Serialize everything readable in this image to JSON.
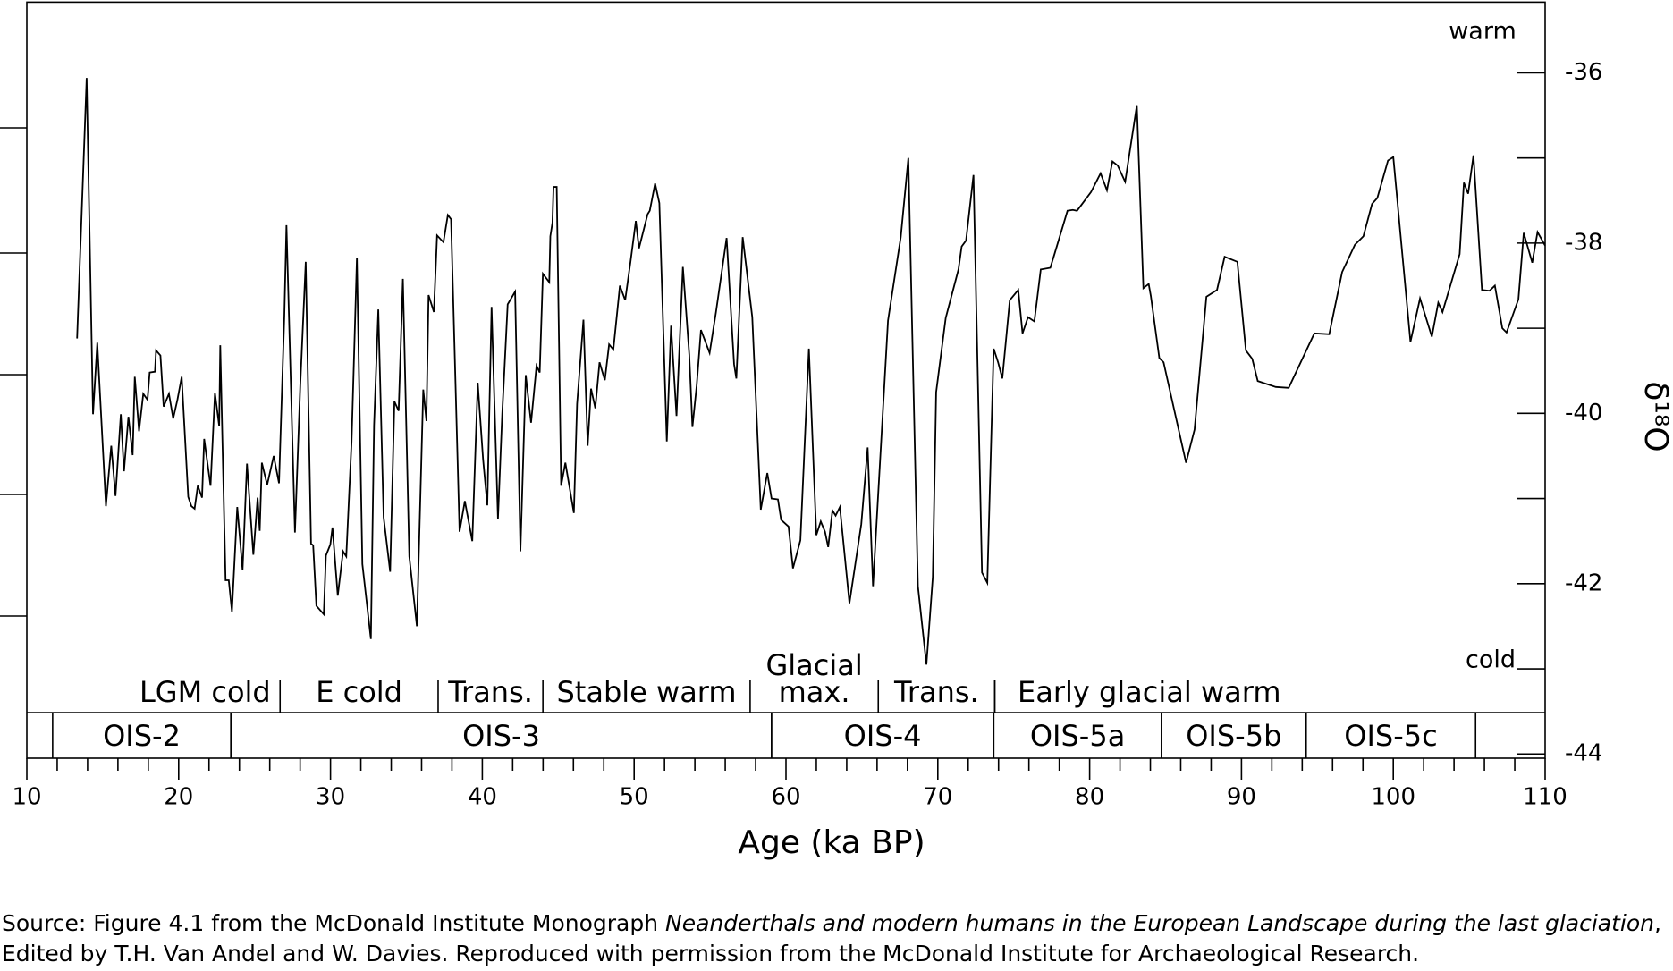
{
  "chart_data": {
    "type": "line",
    "x_label": "Age (ka BP)",
    "y_label": "δ¹⁸O",
    "annotations": {
      "warm": "warm",
      "cold": "cold"
    },
    "color": "#000000",
    "xlim": [
      10,
      110
    ],
    "xticks": [
      10,
      20,
      30,
      40,
      50,
      60,
      70,
      80,
      90,
      100,
      110
    ],
    "xminor": [
      12,
      14,
      16,
      18,
      22,
      24,
      26,
      28,
      32,
      34,
      36,
      38,
      42,
      44,
      46,
      48,
      52,
      54,
      56,
      58,
      62,
      64,
      66,
      68,
      72,
      74,
      76,
      78,
      82,
      84,
      86,
      88,
      92,
      94,
      96,
      98,
      102,
      104,
      106,
      108
    ],
    "ylim": [
      -44.05,
      -35.17
    ],
    "yticks": [
      -36,
      -38,
      -40,
      -42,
      -44
    ],
    "yminor": [
      -37,
      -39,
      -41,
      -43
    ],
    "phases": [
      {
        "label": "LGM cold",
        "start": 16.8,
        "end": 26.68
      },
      {
        "label": "E cold",
        "start": 26.68,
        "end": 37.09
      },
      {
        "label": "Trans.",
        "start": 37.09,
        "end": 43.99
      },
      {
        "label": "Stable warm",
        "start": 43.99,
        "end": 57.64
      },
      {
        "label": [
          "Glacial",
          "max."
        ],
        "start": 57.64,
        "end": 66.08
      },
      {
        "label": "Trans.",
        "start": 66.08,
        "end": 73.75
      },
      {
        "label": "Early glacial warm",
        "start": 73.75,
        "end": 94.1
      }
    ],
    "stages": [
      {
        "label": "OIS-2",
        "start": 11.7,
        "end": 23.44
      },
      {
        "label": "OIS-3",
        "start": 23.44,
        "end": 59.05
      },
      {
        "label": "OIS-4",
        "start": 59.05,
        "end": 73.68
      },
      {
        "label": "OIS-5a",
        "start": 73.68,
        "end": 84.73
      },
      {
        "label": "OIS-5b",
        "start": 84.73,
        "end": 94.26
      },
      {
        "label": "OIS-5c",
        "start": 94.26,
        "end": 105.42
      }
    ],
    "x": [
      13.31,
      13.94,
      14.36,
      14.64,
      15.21,
      15.56,
      15.84,
      16.19,
      16.4,
      16.69,
      16.97,
      17.11,
      17.39,
      17.67,
      17.95,
      18.09,
      18.44,
      18.51,
      18.8,
      19.01,
      19.36,
      19.64,
      19.92,
      20.2,
      20.63,
      20.84,
      21.05,
      21.26,
      21.54,
      21.68,
      22.1,
      22.39,
      22.67,
      22.74,
      23.09,
      23.3,
      23.51,
      23.86,
      24.21,
      24.5,
      24.92,
      25.2,
      25.34,
      25.48,
      25.83,
      26.26,
      26.61,
      26.96,
      27.1,
      27.66,
      28.01,
      28.37,
      28.72,
      28.86,
      29.07,
      29.56,
      29.7,
      29.99,
      30.13,
      30.48,
      30.83,
      31.04,
      31.39,
      31.74,
      32.1,
      32.66,
      32.87,
      33.15,
      33.5,
      33.93,
      34.21,
      34.49,
      34.77,
      35.19,
      35.69,
      36.11,
      36.32,
      36.46,
      36.81,
      37.02,
      37.44,
      37.73,
      37.94,
      38.5,
      38.85,
      39.34,
      39.7,
      40.05,
      40.33,
      40.61,
      41.03,
      41.31,
      41.67,
      42.16,
      42.51,
      42.86,
      43.21,
      43.57,
      43.78,
      43.99,
      44.41,
      44.48,
      44.62,
      44.69,
      44.9,
      45.19,
      45.47,
      46.03,
      46.24,
      46.66,
      46.94,
      47.16,
      47.44,
      47.72,
      48.07,
      48.35,
      48.63,
      49.06,
      49.41,
      49.76,
      50.11,
      50.32,
      50.89,
      51.03,
      51.38,
      51.66,
      52.15,
      52.43,
      52.79,
      53.21,
      53.63,
      53.84,
      54.12,
      54.4,
      54.97,
      55.39,
      56.09,
      56.58,
      56.73,
      57.15,
      57.78,
      58.34,
      58.77,
      59.05,
      59.47,
      59.68,
      60.17,
      60.46,
      60.95,
      61.51,
      62.0,
      62.29,
      62.57,
      62.78,
      63.06,
      63.27,
      63.55,
      64.18,
      64.96,
      65.38,
      65.73,
      66.72,
      67.56,
      68.06,
      68.69,
      69.25,
      69.67,
      69.89,
      70.52,
      71.36,
      71.57,
      71.86,
      72.35,
      72.91,
      73.26,
      73.68,
      73.97,
      74.25,
      74.74,
      75.3,
      75.58,
      75.94,
      76.36,
      76.78,
      77.41,
      77.7,
      78.54,
      78.89,
      79.17,
      80.09,
      80.72,
      81.14,
      81.5,
      81.85,
      82.34,
      83.11,
      83.54,
      83.89,
      84.03,
      84.59,
      84.87,
      86.35,
      86.91,
      87.69,
      88.39,
      88.89,
      89.73,
      90.29,
      90.71,
      91.07,
      92.26,
      93.11,
      94.8,
      95.78,
      96.63,
      97.47,
      98.03,
      98.6,
      98.95,
      99.65,
      100.0,
      101.13,
      101.76,
      102.54,
      102.96,
      103.24,
      104.37,
      104.65,
      104.93,
      105.28,
      105.84,
      106.34,
      106.69,
      107.18,
      107.46,
      108.24,
      108.59,
      109.15,
      109.5,
      110.0
    ],
    "values": [
      -39.12,
      -36.06,
      -40.01,
      -39.17,
      -41.09,
      -40.38,
      -40.97,
      -40.01,
      -40.68,
      -40.04,
      -40.49,
      -39.57,
      -40.21,
      -39.77,
      -39.84,
      -39.52,
      -39.51,
      -39.26,
      -39.32,
      -39.92,
      -39.77,
      -40.06,
      -39.84,
      -39.57,
      -40.98,
      -41.09,
      -41.12,
      -40.85,
      -40.99,
      -40.3,
      -40.85,
      -39.76,
      -40.15,
      -39.2,
      -41.96,
      -41.96,
      -42.33,
      -41.1,
      -41.84,
      -40.59,
      -41.66,
      -40.99,
      -41.38,
      -40.58,
      -40.84,
      -40.5,
      -40.82,
      -38.86,
      -37.79,
      -41.4,
      -39.67,
      -38.22,
      -41.53,
      -41.55,
      -42.26,
      -42.36,
      -41.67,
      -41.54,
      -41.34,
      -42.14,
      -41.62,
      -41.68,
      -40.33,
      -38.17,
      -41.77,
      -42.65,
      -40.14,
      -38.78,
      -41.22,
      -41.86,
      -39.86,
      -39.97,
      -38.42,
      -41.68,
      -42.5,
      -39.72,
      -40.09,
      -38.61,
      -38.81,
      -37.91,
      -37.99,
      -37.67,
      -37.72,
      -41.39,
      -41.03,
      -41.5,
      -39.64,
      -40.54,
      -41.08,
      -38.75,
      -41.24,
      -40.01,
      -38.72,
      -38.57,
      -41.62,
      -39.55,
      -40.11,
      -39.44,
      -39.52,
      -38.36,
      -38.46,
      -37.92,
      -37.76,
      -37.34,
      -37.34,
      -40.85,
      -40.58,
      -41.17,
      -39.89,
      -38.9,
      -40.38,
      -39.71,
      -39.94,
      -39.4,
      -39.61,
      -39.19,
      -39.25,
      -38.5,
      -38.67,
      -38.22,
      -37.74,
      -38.06,
      -37.66,
      -37.62,
      -37.3,
      -37.53,
      -40.33,
      -38.97,
      -40.03,
      -38.28,
      -39.31,
      -40.16,
      -39.67,
      -39.02,
      -39.29,
      -38.81,
      -37.94,
      -39.42,
      -39.59,
      -37.93,
      -38.87,
      -41.13,
      -40.7,
      -41.0,
      -41.01,
      -41.25,
      -41.33,
      -41.82,
      -41.49,
      -39.24,
      -41.43,
      -41.27,
      -41.39,
      -41.57,
      -41.14,
      -41.2,
      -41.1,
      -42.23,
      -41.3,
      -40.4,
      -42.03,
      -38.91,
      -37.93,
      -37.0,
      -42.03,
      -42.95,
      -41.92,
      -39.75,
      -38.88,
      -38.31,
      -38.04,
      -37.97,
      -37.2,
      -41.87,
      -41.99,
      -39.24,
      -39.4,
      -39.59,
      -38.67,
      -38.55,
      -39.06,
      -38.87,
      -38.92,
      -38.31,
      -38.29,
      -38.12,
      -37.62,
      -37.61,
      -37.62,
      -37.4,
      -37.18,
      -37.38,
      -37.04,
      -37.09,
      -37.28,
      -36.38,
      -38.53,
      -38.48,
      -38.62,
      -39.35,
      -39.4,
      -40.58,
      -40.19,
      -38.63,
      -38.55,
      -38.16,
      -38.22,
      -39.26,
      -39.36,
      -39.62,
      -39.69,
      -39.7,
      -39.06,
      -39.07,
      -38.34,
      -38.02,
      -37.92,
      -37.54,
      -37.47,
      -37.03,
      -36.99,
      -39.16,
      -38.65,
      -39.1,
      -38.7,
      -38.81,
      -38.13,
      -37.29,
      -37.42,
      -36.97,
      -38.55,
      -38.56,
      -38.5,
      -39.0,
      -39.05,
      -38.66,
      -37.88,
      -38.23,
      -37.87,
      -38.03
    ]
  },
  "caption": {
    "line1_start": "Source: Figure 4.1 from the McDonald Institute Monograph ",
    "line1_italic": "Neanderthals and modern humans in the European Landscape during the last glaciation",
    "line1_end": ",",
    "line2": "Edited by T.H. Van Andel and W. Davies. Reproduced with permission from the McDonald Institute for Archaeological Research."
  }
}
